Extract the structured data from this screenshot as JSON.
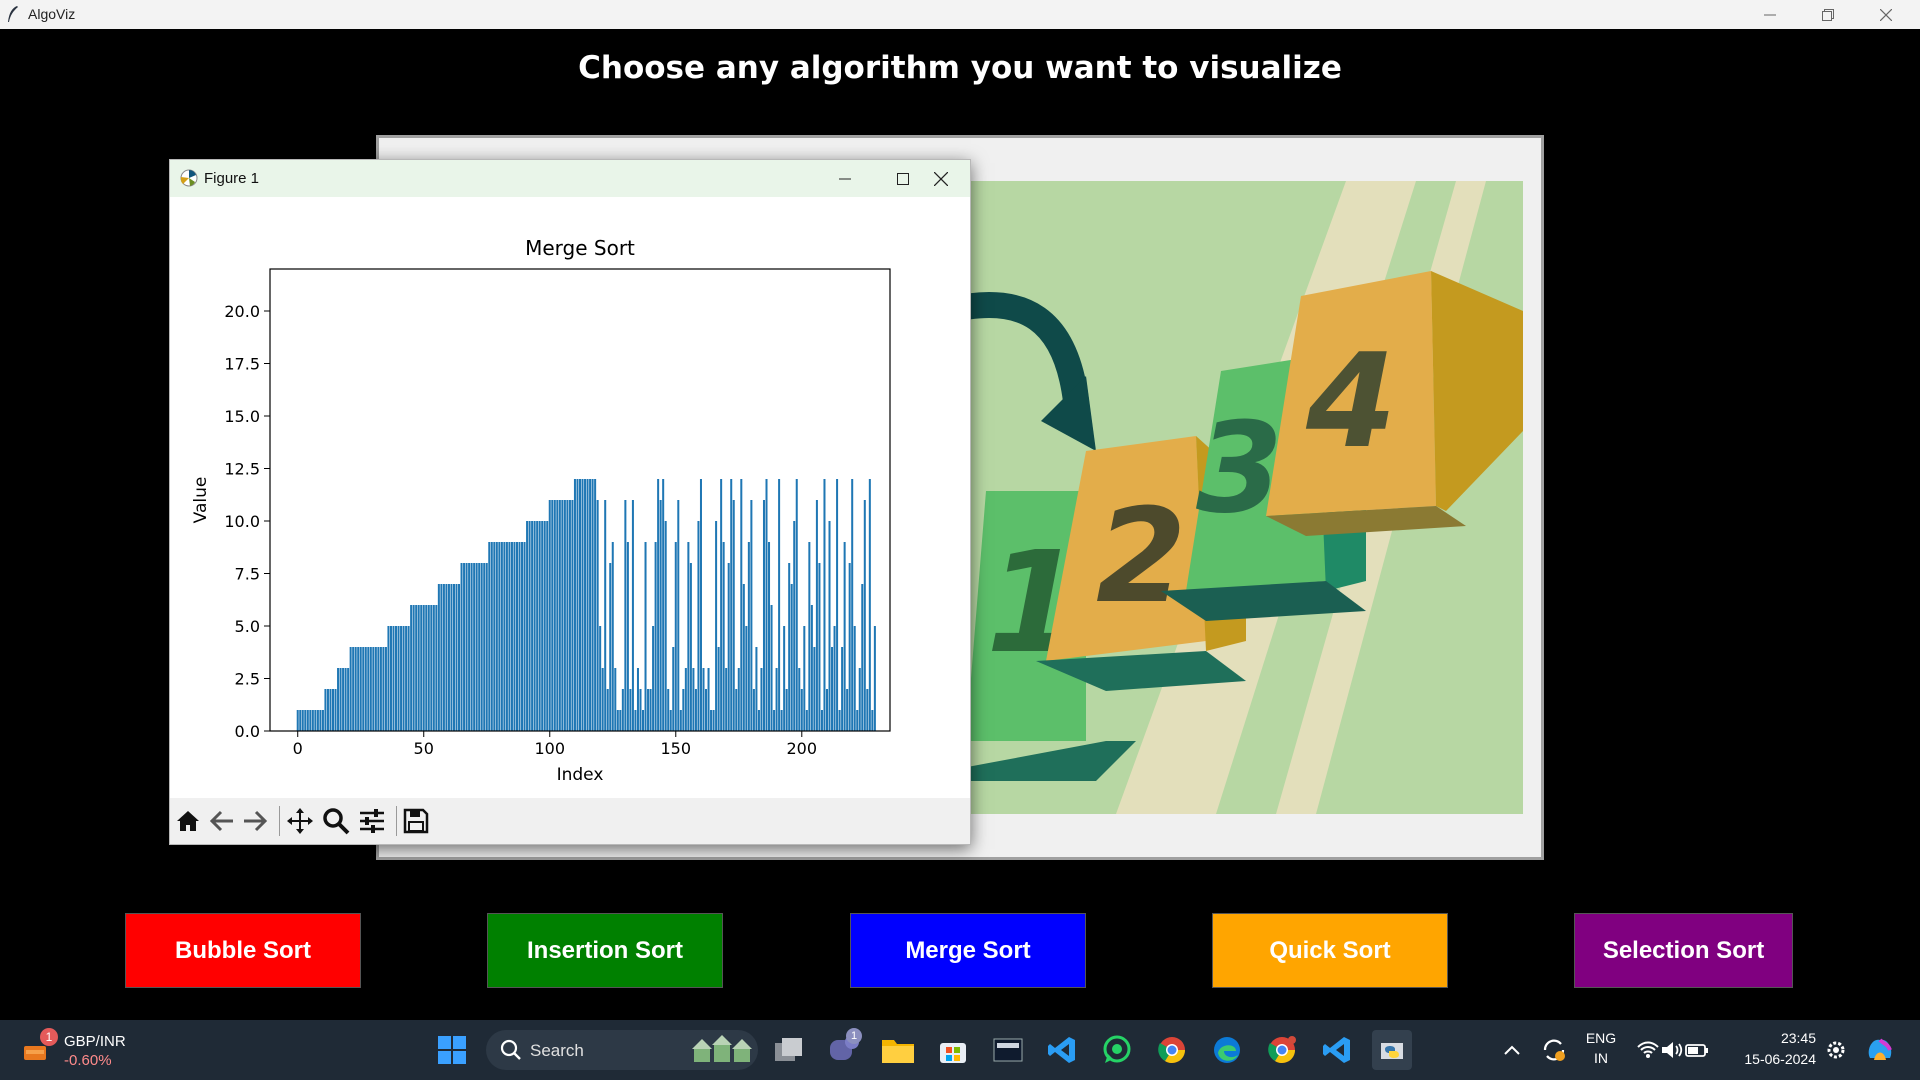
{
  "app": {
    "title": "AlgoViz",
    "window_controls": [
      "minimize",
      "restore",
      "close"
    ]
  },
  "heading": "Choose any algorithm you want to visualize",
  "artwork": {
    "numbers": [
      "1",
      "2",
      "3",
      "4"
    ]
  },
  "figure": {
    "title": "Figure 1",
    "toolbar": [
      "home-icon",
      "back-icon",
      "forward-icon",
      "pan-icon",
      "zoom-icon",
      "configure-icon",
      "save-icon"
    ]
  },
  "chart_data": {
    "type": "bar",
    "title": "Merge Sort",
    "xlabel": "Index",
    "ylabel": "Value",
    "xlim": [
      -11,
      235
    ],
    "ylim": [
      0,
      22
    ],
    "xticks": [
      "0",
      "50",
      "100",
      "150",
      "200"
    ],
    "yticks": [
      "0.0",
      "2.5",
      "5.0",
      "7.5",
      "10.0",
      "12.5",
      "15.0",
      "17.5",
      "20.0"
    ],
    "color": "#1f77b4",
    "x_start": 0,
    "values": [
      1,
      1,
      1,
      1,
      1,
      1,
      1,
      1,
      1,
      1,
      1,
      2,
      2,
      2,
      2,
      2,
      3,
      3,
      3,
      3,
      3,
      4,
      4,
      4,
      4,
      4,
      4,
      4,
      4,
      4,
      4,
      4,
      4,
      4,
      4,
      4,
      5,
      5,
      5,
      5,
      5,
      5,
      5,
      5,
      5,
      6,
      6,
      6,
      6,
      6,
      6,
      6,
      6,
      6,
      6,
      6,
      7,
      7,
      7,
      7,
      7,
      7,
      7,
      7,
      7,
      8,
      8,
      8,
      8,
      8,
      8,
      8,
      8,
      8,
      8,
      8,
      9,
      9,
      9,
      9,
      9,
      9,
      9,
      9,
      9,
      9,
      9,
      9,
      9,
      9,
      9,
      10,
      10,
      10,
      10,
      10,
      10,
      10,
      10,
      10,
      11,
      11,
      11,
      11,
      11,
      11,
      11,
      11,
      11,
      11,
      12,
      12,
      12,
      12,
      12,
      12,
      12,
      12,
      12,
      11,
      5,
      3,
      11,
      2,
      8,
      9,
      3,
      1,
      1,
      2,
      11,
      9,
      2,
      11,
      1,
      3,
      2,
      1,
      9,
      2,
      2,
      5,
      9,
      12,
      11,
      12,
      10,
      2,
      1,
      4,
      9,
      11,
      1,
      2,
      3,
      9,
      8,
      3,
      2,
      10,
      12,
      3,
      2,
      3,
      1,
      1,
      10,
      4,
      12,
      9,
      3,
      8,
      12,
      11,
      2,
      3,
      12,
      7,
      5,
      9,
      11,
      2,
      4,
      1,
      3,
      11,
      12,
      9,
      6,
      1,
      3,
      12,
      1,
      5,
      2,
      8,
      7,
      10,
      12,
      3,
      2,
      5,
      1,
      9,
      6,
      4,
      11,
      8,
      1,
      12,
      2,
      10,
      4,
      5,
      12,
      1,
      4,
      9,
      2,
      8,
      12,
      5,
      1,
      3,
      7,
      11,
      2,
      12,
      1,
      5
    ],
    "grid": false
  },
  "buttons": [
    {
      "label": "Bubble Sort",
      "color": "#ff0000"
    },
    {
      "label": "Insertion Sort",
      "color": "#008000"
    },
    {
      "label": "Merge Sort",
      "color": "#0000ff"
    },
    {
      "label": "Quick Sort",
      "color": "#ffa500"
    },
    {
      "label": "Selection Sort",
      "color": "#800080"
    }
  ],
  "taskbar": {
    "widget": {
      "title": "GBP/INR",
      "value": "-0.60%",
      "badge": "1"
    },
    "search_label": "Search",
    "chat_badge": "1",
    "tray": {
      "lang": "ENG",
      "region": "IN",
      "time": "23:45",
      "date": "15-06-2024"
    }
  }
}
